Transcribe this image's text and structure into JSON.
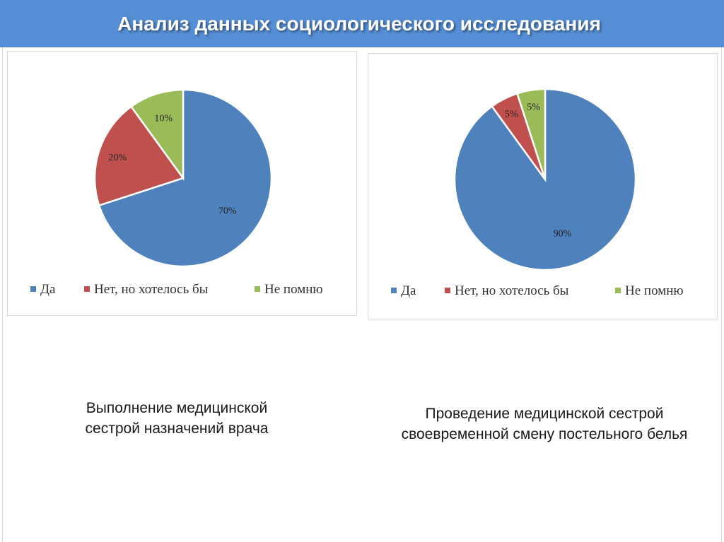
{
  "slide": {
    "title": "Анализ данных социологического исследования"
  },
  "colors": {
    "header": "#558ed5",
    "yes": "#4f81bd",
    "no_but_wanted": "#c0504d",
    "dont_remember": "#9bbb59"
  },
  "captions": [
    {
      "line1": "Выполнение медицинской",
      "line2": "сестрой назначений врача"
    },
    {
      "line1": "Проведение медицинской сестрой",
      "line2": "своевременной смену постельного белья"
    }
  ],
  "chart_data": [
    {
      "type": "pie",
      "title": "",
      "categories": [
        "Да",
        "Нет, но хотелось бы",
        "Не помню"
      ],
      "values": [
        70,
        20,
        10
      ],
      "labels": [
        "70%",
        "20%",
        "10%"
      ],
      "legend_position": "bottom"
    },
    {
      "type": "pie",
      "title": "",
      "categories": [
        "Да",
        "Нет, но хотелось бы",
        "Не помню"
      ],
      "values": [
        90,
        5,
        5
      ],
      "labels": [
        "90%",
        "5%",
        "5%"
      ],
      "legend_position": "bottom"
    }
  ]
}
